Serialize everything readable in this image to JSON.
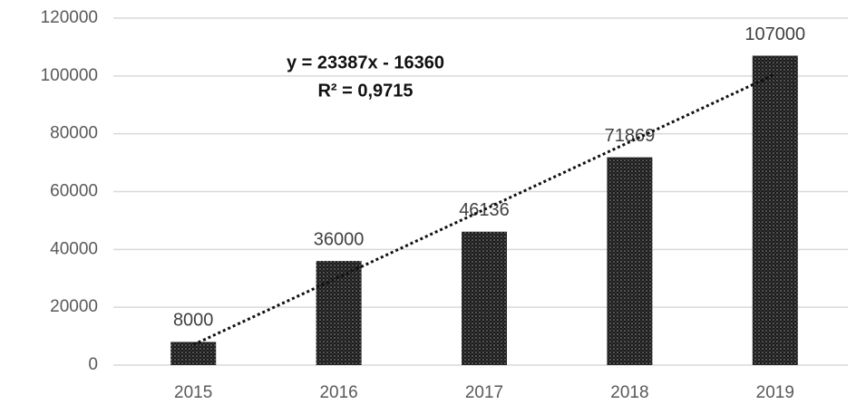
{
  "chart_data": {
    "type": "bar",
    "categories": [
      "2015",
      "2016",
      "2017",
      "2018",
      "2019"
    ],
    "values": [
      8000,
      36000,
      46136,
      71869,
      107000
    ],
    "color": "#1a1a1a",
    "ylim": [
      0,
      120000
    ],
    "yticks": [
      0,
      20000,
      40000,
      60000,
      80000,
      100000,
      120000
    ],
    "grid": true,
    "trendline": {
      "type": "linear",
      "slope": 23387,
      "intercept": -16360,
      "equation": "y = 23387x - 16360",
      "r_squared": "R² = 0,9715",
      "color": "#111111"
    }
  }
}
